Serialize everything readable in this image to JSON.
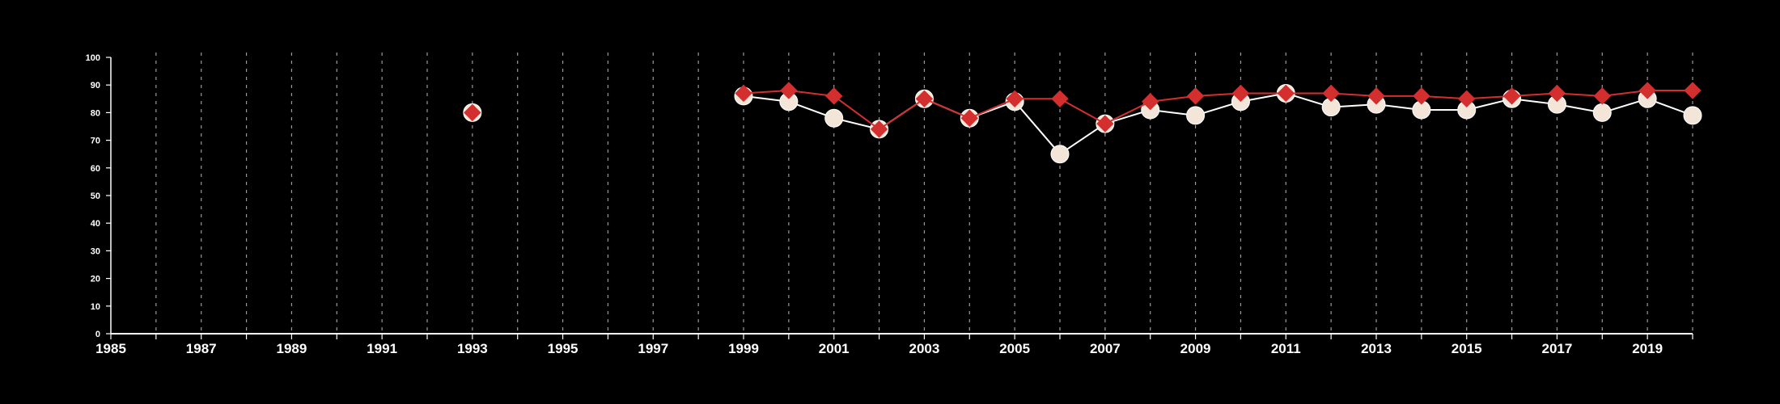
{
  "chart_data": {
    "type": "line",
    "title": "",
    "xlabel": "",
    "ylabel": "",
    "xlim": [
      1985,
      2020
    ],
    "ylim": [
      0,
      100
    ],
    "y_ticks": [
      0,
      10,
      20,
      30,
      40,
      50,
      60,
      70,
      80,
      90,
      100
    ],
    "x_ticks": [
      1985,
      1987,
      1989,
      1991,
      1993,
      1995,
      1997,
      1999,
      2001,
      2003,
      2005,
      2007,
      2009,
      2011,
      2013,
      2015,
      2017,
      2019
    ],
    "gridlines": "dashed vertical at every year",
    "legend": "none",
    "series": [
      {
        "marker": "circle",
        "color": "#ffffff",
        "fill": "#f3e6d8",
        "x": [
          1993,
          1999,
          2000,
          2001,
          2002,
          2003,
          2004,
          2005,
          2006,
          2007,
          2008,
          2009,
          2010,
          2011,
          2012,
          2013,
          2014,
          2015,
          2016,
          2017,
          2018,
          2019,
          2020
        ],
        "values": [
          80,
          86,
          84,
          78,
          74,
          85,
          78,
          84,
          65,
          76,
          81,
          79,
          84,
          87,
          82,
          83,
          81,
          81,
          85,
          83,
          80,
          85,
          79
        ]
      },
      {
        "marker": "diamond",
        "color": "#d32f2f",
        "fill": "#d32f2f",
        "x": [
          1993,
          1999,
          2000,
          2001,
          2002,
          2003,
          2004,
          2005,
          2006,
          2007,
          2008,
          2009,
          2010,
          2011,
          2012,
          2013,
          2014,
          2015,
          2016,
          2017,
          2018,
          2019,
          2020
        ],
        "values": [
          80,
          87,
          88,
          86,
          74,
          85,
          78,
          85,
          85,
          76,
          84,
          86,
          87,
          87,
          87,
          86,
          86,
          85,
          86,
          87,
          86,
          88,
          88
        ]
      }
    ]
  }
}
